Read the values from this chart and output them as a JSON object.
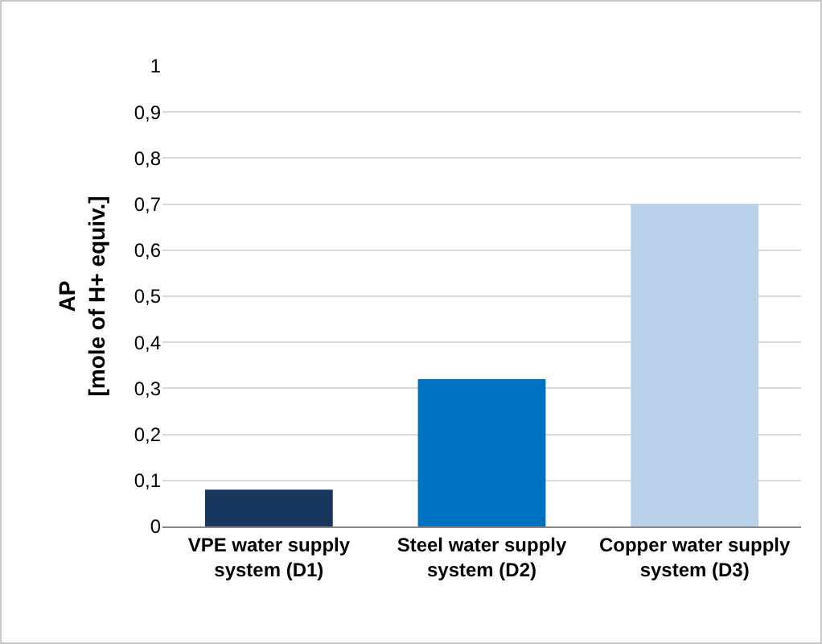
{
  "chart_data": {
    "type": "bar",
    "ylabel": "AP\n[mole of H+ equiv.]",
    "categories": [
      "VPE water supply system (D1)",
      "Steel water supply system (D2)",
      "Copper water supply system (D3)"
    ],
    "values": [
      0.08,
      0.32,
      0.7
    ],
    "colors": [
      "#17375e",
      "#0070c0",
      "#b9d1ea"
    ],
    "ylim": [
      0,
      1
    ],
    "yticks": [
      0,
      {
        "value": 0.1,
        "label": "0,1"
      },
      {
        "value": 0.2,
        "label": "0,2"
      },
      {
        "value": 0.3,
        "label": "0,3"
      },
      {
        "value": 0.4,
        "label": "0,4"
      },
      {
        "value": 0.5,
        "label": "0,5"
      },
      {
        "value": 0.6,
        "label": "0,6"
      },
      {
        "value": 0.7,
        "label": "0,7"
      },
      {
        "value": 0.8,
        "label": "0,8"
      },
      {
        "value": 0.9,
        "label": "0,9"
      },
      1
    ],
    "grid": "y"
  }
}
